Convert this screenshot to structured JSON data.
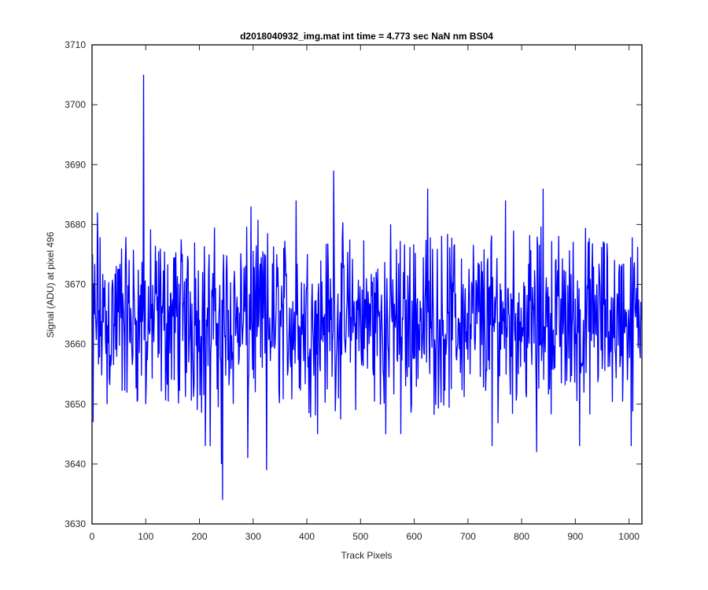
{
  "chart_data": {
    "type": "line",
    "title": "d2018040932_img.mat int time = 4.773 sec  NaN nm BS04",
    "xlabel": "Track Pixels",
    "ylabel": "Signal (ADU) at pixel 496",
    "xlim": [
      0,
      1024
    ],
    "ylim": [
      3630,
      3710
    ],
    "x_ticks": [
      0,
      100,
      200,
      300,
      400,
      500,
      600,
      700,
      800,
      900,
      1000
    ],
    "y_ticks": [
      3630,
      3640,
      3650,
      3660,
      3670,
      3680,
      3690,
      3700,
      3710
    ],
    "grid": false,
    "series": [
      {
        "color": "#0000ff",
        "n_points": 1024,
        "baseline": 3664,
        "noise_range": [
          3645,
          3682
        ],
        "notable_points": [
          {
            "x": 2,
            "y": 3647
          },
          {
            "x": 10,
            "y": 3682
          },
          {
            "x": 28,
            "y": 3650
          },
          {
            "x": 55,
            "y": 3676
          },
          {
            "x": 96,
            "y": 3705
          },
          {
            "x": 100,
            "y": 3650
          },
          {
            "x": 191,
            "y": 3677
          },
          {
            "x": 211,
            "y": 3643
          },
          {
            "x": 220,
            "y": 3643
          },
          {
            "x": 241,
            "y": 3640
          },
          {
            "x": 243,
            "y": 3634
          },
          {
            "x": 290,
            "y": 3641
          },
          {
            "x": 296,
            "y": 3683
          },
          {
            "x": 325,
            "y": 3639
          },
          {
            "x": 380,
            "y": 3684
          },
          {
            "x": 420,
            "y": 3645
          },
          {
            "x": 450,
            "y": 3689
          },
          {
            "x": 547,
            "y": 3645
          },
          {
            "x": 575,
            "y": 3645
          },
          {
            "x": 625,
            "y": 3686
          },
          {
            "x": 745,
            "y": 3643
          },
          {
            "x": 770,
            "y": 3684
          },
          {
            "x": 828,
            "y": 3642
          },
          {
            "x": 840,
            "y": 3686
          },
          {
            "x": 908,
            "y": 3643
          },
          {
            "x": 1004,
            "y": 3643
          },
          {
            "x": 1023,
            "y": 3664
          }
        ]
      }
    ]
  }
}
